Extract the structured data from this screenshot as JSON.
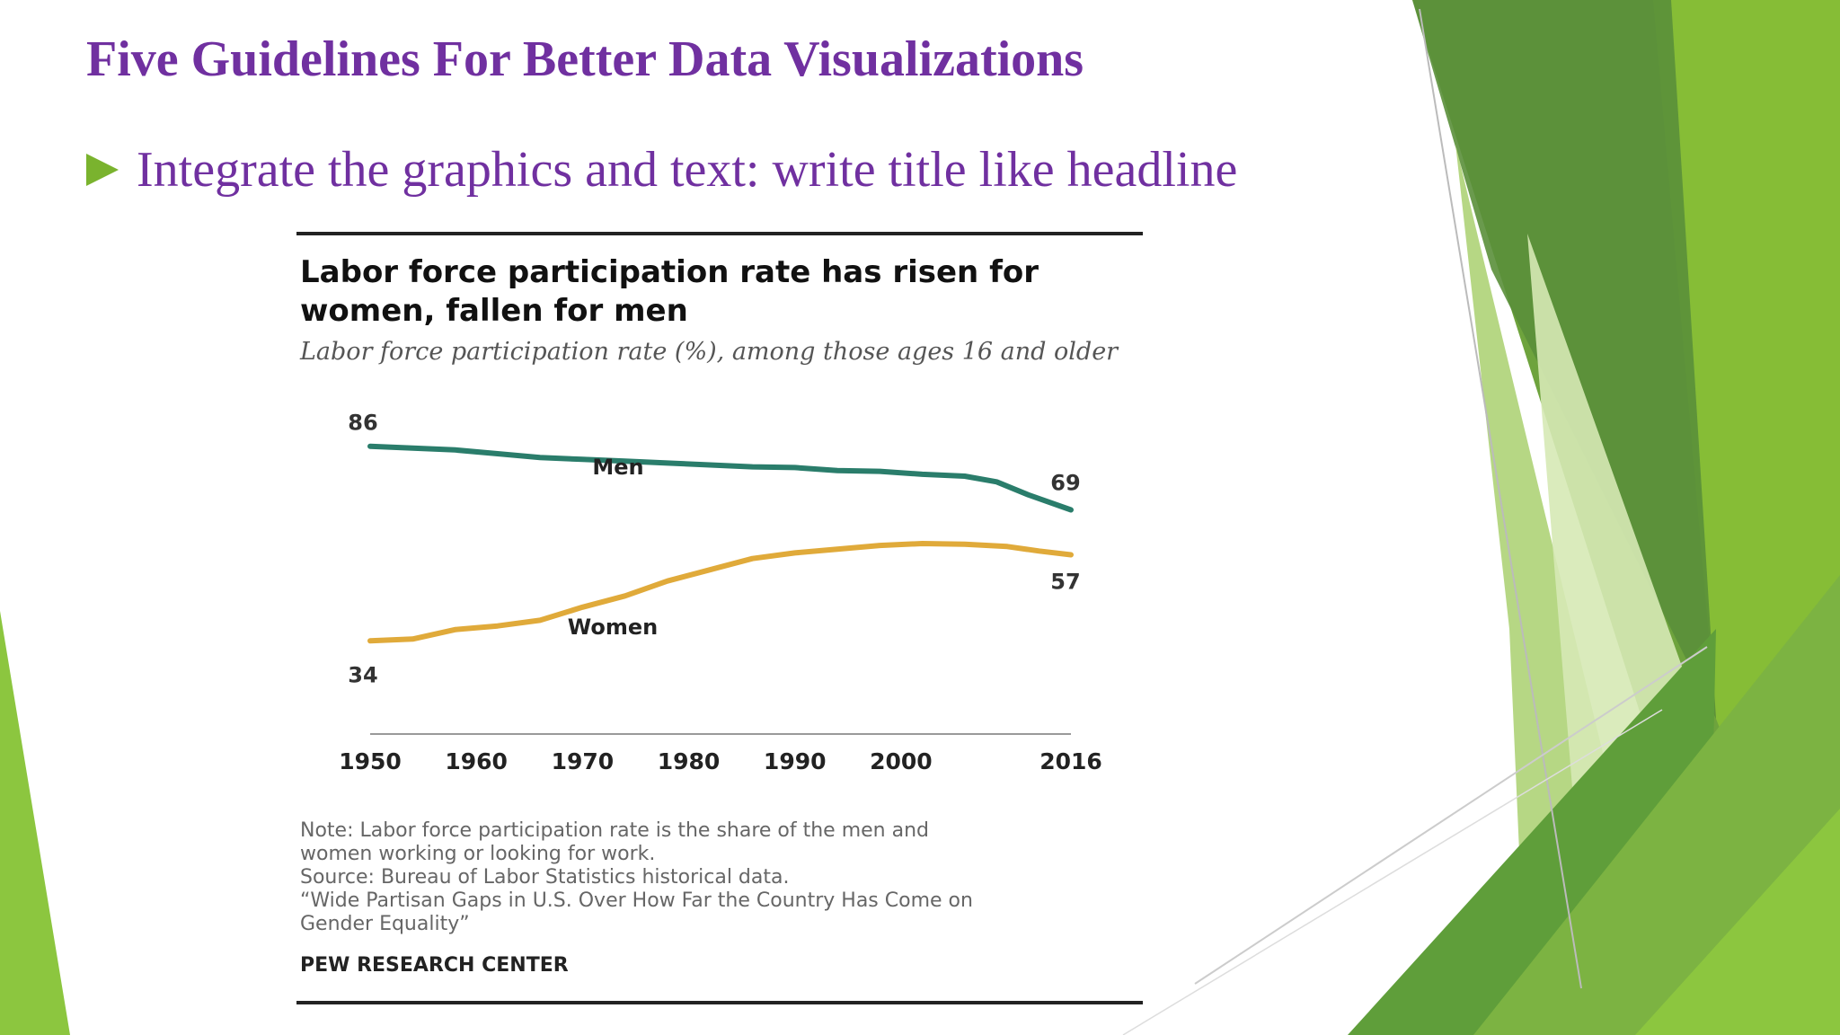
{
  "slide": {
    "title": "Five Guidelines For Better Data Visualizations",
    "bullet": "Integrate the graphics and text: write title like headline"
  },
  "colors": {
    "title_purple": "#7030a0",
    "bullet_green": "#7ab32e",
    "men_line": "#2a7d6b",
    "women_line": "#e0aa3a"
  },
  "figure": {
    "title": "Labor force participation rate has risen for women, fallen for men",
    "subtitle": "Labor force participation rate (%), among those ages 16 and older",
    "notes": [
      "Note: Labor force participation rate is the share of the men and",
      "women working or looking for work.",
      "Source: Bureau of Labor Statistics historical data.",
      "“Wide Partisan Gaps in U.S. Over How Far the Country Has Come on",
      "Gender Equality”"
    ],
    "source_org": "PEW RESEARCH CENTER"
  },
  "chart_data": {
    "type": "line",
    "title": "Labor force participation rate has risen for women, fallen for men",
    "subtitle": "Labor force participation rate (%), among those ages 16 and older",
    "x_tick_labels": [
      "1950",
      "1960",
      "1970",
      "1980",
      "1990",
      "2000",
      "2016"
    ],
    "xlim": [
      1950,
      2016
    ],
    "ylim": [
      30,
      90
    ],
    "grid": false,
    "series": [
      {
        "name": "Men",
        "color": "#2a7d6b",
        "start_label": "86",
        "end_label": "69",
        "points": [
          [
            1950,
            86
          ],
          [
            1954,
            85.5
          ],
          [
            1958,
            85
          ],
          [
            1962,
            84
          ],
          [
            1966,
            83
          ],
          [
            1970,
            82.5
          ],
          [
            1974,
            82
          ],
          [
            1978,
            81.5
          ],
          [
            1982,
            81
          ],
          [
            1986,
            80.5
          ],
          [
            1990,
            80.3
          ],
          [
            1994,
            79.5
          ],
          [
            1998,
            79.3
          ],
          [
            2002,
            78.5
          ],
          [
            2006,
            78
          ],
          [
            2009,
            76.5
          ],
          [
            2012,
            73
          ],
          [
            2016,
            69
          ]
        ]
      },
      {
        "name": "Women",
        "color": "#e0aa3a",
        "start_label": "34",
        "end_label": "57",
        "points": [
          [
            1950,
            34
          ],
          [
            1954,
            34.5
          ],
          [
            1958,
            37
          ],
          [
            1962,
            38
          ],
          [
            1966,
            39.5
          ],
          [
            1970,
            43
          ],
          [
            1974,
            46
          ],
          [
            1978,
            50
          ],
          [
            1982,
            53
          ],
          [
            1986,
            56
          ],
          [
            1990,
            57.5
          ],
          [
            1994,
            58.5
          ],
          [
            1998,
            59.5
          ],
          [
            2002,
            60
          ],
          [
            2006,
            59.8
          ],
          [
            2010,
            59.2
          ],
          [
            2013,
            58
          ],
          [
            2016,
            57
          ]
        ]
      }
    ]
  }
}
